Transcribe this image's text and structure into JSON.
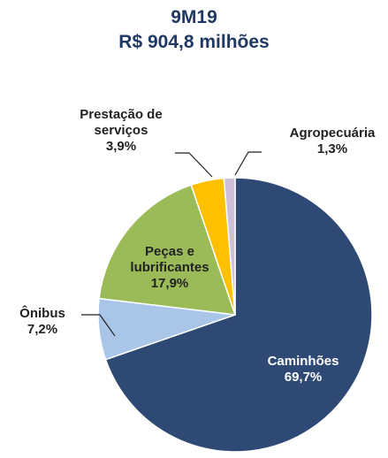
{
  "chart_data": {
    "type": "pie",
    "title": "9M19",
    "subtitle": "R$ 904,8 milhões",
    "categories": [
      "Caminhões",
      "Ônibus",
      "Peças e\nlubrificantes",
      "Prestação de\nserviços",
      "Agropecuária"
    ],
    "values": [
      69.7,
      7.2,
      17.9,
      3.9,
      1.3
    ],
    "value_labels": [
      "69,7%",
      "7,2%",
      "17,9%",
      "3,9%",
      "1,3%"
    ],
    "colors": [
      "#2e4a74",
      "#a9c6e8",
      "#9bbb59",
      "#ffc000",
      "#ccc0da"
    ]
  }
}
